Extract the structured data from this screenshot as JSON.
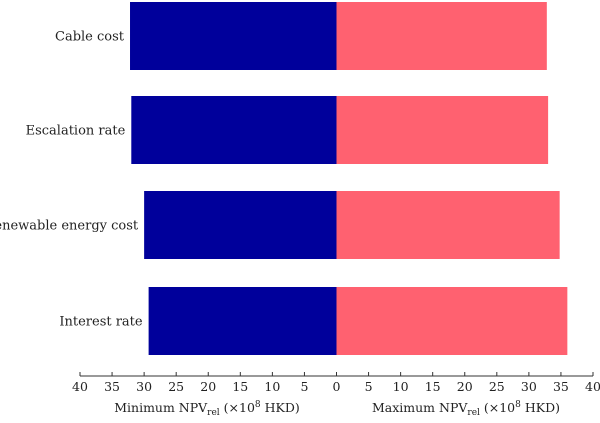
{
  "chart_data": {
    "type": "bar",
    "orientation": "horizontal",
    "layout": "tornado",
    "categories": [
      "Cable cost",
      "Escalation rate",
      "Renewable energy cost",
      "Interest rate"
    ],
    "series": [
      {
        "name": "Minimum NPV_rel",
        "values": [
          32.2,
          32.0,
          30.0,
          29.3
        ],
        "color": "#00009b",
        "side": "left"
      },
      {
        "name": "Maximum NPV_rel",
        "values": [
          32.8,
          33.0,
          34.8,
          36.0
        ],
        "color": "#ff6170",
        "side": "right"
      }
    ],
    "x_ticks": [
      "40",
      "35",
      "30",
      "25",
      "20",
      "15",
      "10",
      "5",
      "0",
      "5",
      "10",
      "15",
      "20",
      "25",
      "30",
      "35",
      "40"
    ],
    "xlim": [
      -40,
      40
    ],
    "xlabel_left": {
      "base": "Minimum NPV",
      "sub": "rel",
      "unit_open": " (×10",
      "sup": "8",
      "unit_close": " HKD)"
    },
    "xlabel_right": {
      "base": "Maximum NPV",
      "sub": "rel",
      "unit_open": " (×10",
      "sup": "8",
      "unit_close": " HKD)"
    },
    "grid": false
  }
}
